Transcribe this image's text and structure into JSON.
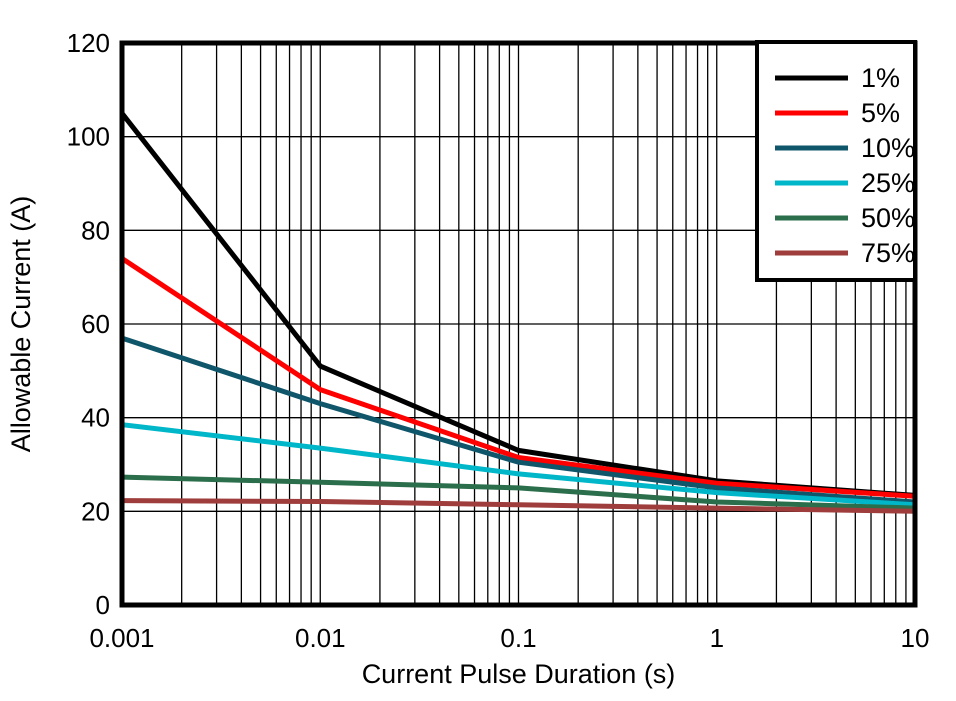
{
  "figure": {
    "background_color": "#FFFFFF",
    "grid_color": "#000000",
    "border_color": "#000000",
    "text_color": "#000000"
  },
  "chart_data": {
    "type": "line",
    "title": "",
    "xlabel": "Current Pulse Duration (s)",
    "ylabel": "Allowable Current (A)",
    "x_scale": "log",
    "y_scale": "linear",
    "xlim": [
      0.001,
      10
    ],
    "ylim": [
      0,
      120
    ],
    "x_ticks": [
      0.001,
      0.01,
      0.1,
      1,
      10
    ],
    "x_tick_labels": [
      "0.001",
      "0.01",
      "0.1",
      "1",
      "10"
    ],
    "y_ticks": [
      0,
      20,
      40,
      60,
      80,
      100,
      120
    ],
    "y_tick_labels": [
      "0",
      "20",
      "40",
      "60",
      "80",
      "100",
      "120"
    ],
    "grid": true,
    "minor_log_gridlines": true,
    "legend_position": "top-right",
    "x": [
      0.001,
      0.01,
      0.1,
      1,
      10
    ],
    "series": [
      {
        "name": "1%",
        "color": "#000000",
        "values": [
          105,
          51,
          33,
          26.5,
          23.4
        ]
      },
      {
        "name": "5%",
        "color": "#FF0000",
        "values": [
          74,
          46,
          31.5,
          26,
          23.2
        ]
      },
      {
        "name": "10%",
        "color": "#0F566A",
        "values": [
          57,
          43,
          30.5,
          25,
          22
        ]
      },
      {
        "name": "25%",
        "color": "#00B7C9",
        "values": [
          38.5,
          33.5,
          28,
          24,
          21.4
        ]
      },
      {
        "name": "50%",
        "color": "#2B6E4B",
        "values": [
          27.3,
          26.2,
          25,
          22,
          20.7
        ]
      },
      {
        "name": "75%",
        "color": "#9E3D3B",
        "values": [
          22.3,
          22.1,
          21.4,
          20.7,
          20
        ]
      }
    ]
  }
}
